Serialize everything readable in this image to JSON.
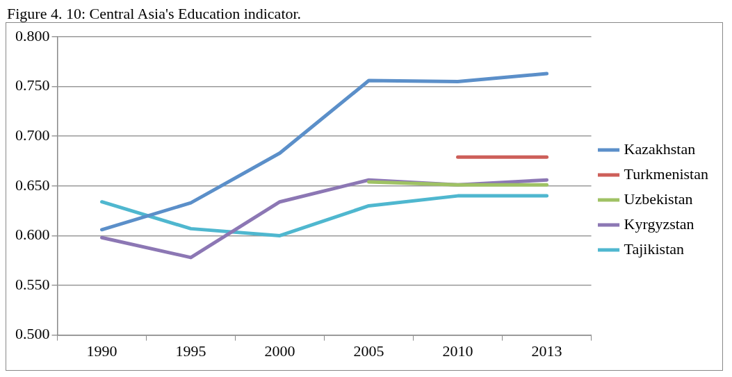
{
  "chart_data": {
    "type": "line",
    "title": "Figure 4. 10: Central Asia's Education indicator.",
    "categories": [
      "1990",
      "1995",
      "2000",
      "2005",
      "2010",
      "2013"
    ],
    "series": [
      {
        "name": "Kazakhstan",
        "color": "#5b8fc9",
        "values": [
          0.606,
          0.633,
          0.683,
          0.756,
          0.755,
          0.763
        ]
      },
      {
        "name": "Turkmenistan",
        "color": "#cd5f59",
        "values": [
          null,
          null,
          null,
          null,
          0.679,
          0.679
        ]
      },
      {
        "name": "Uzbekistan",
        "color": "#9fc264",
        "values": [
          null,
          null,
          null,
          0.654,
          0.651,
          0.651
        ]
      },
      {
        "name": "Kyrgyzstan",
        "color": "#8c77b4",
        "values": [
          0.598,
          0.578,
          0.634,
          0.656,
          0.651,
          0.656
        ]
      },
      {
        "name": "Tajikistan",
        "color": "#4fb7cf",
        "values": [
          0.634,
          0.607,
          0.6,
          0.63,
          0.64,
          0.64
        ]
      }
    ],
    "ylim": [
      0.5,
      0.8
    ],
    "yticks": [
      {
        "value": 0.5,
        "label": "0.500"
      },
      {
        "value": 0.55,
        "label": "0.550"
      },
      {
        "value": 0.6,
        "label": "0.600"
      },
      {
        "value": 0.65,
        "label": "0.650"
      },
      {
        "value": 0.7,
        "label": "0.700"
      },
      {
        "value": 0.75,
        "label": "0.750"
      },
      {
        "value": 0.8,
        "label": "0.800"
      }
    ],
    "grid": "y",
    "legend": "right",
    "marker": "none",
    "line_style": "solid"
  }
}
